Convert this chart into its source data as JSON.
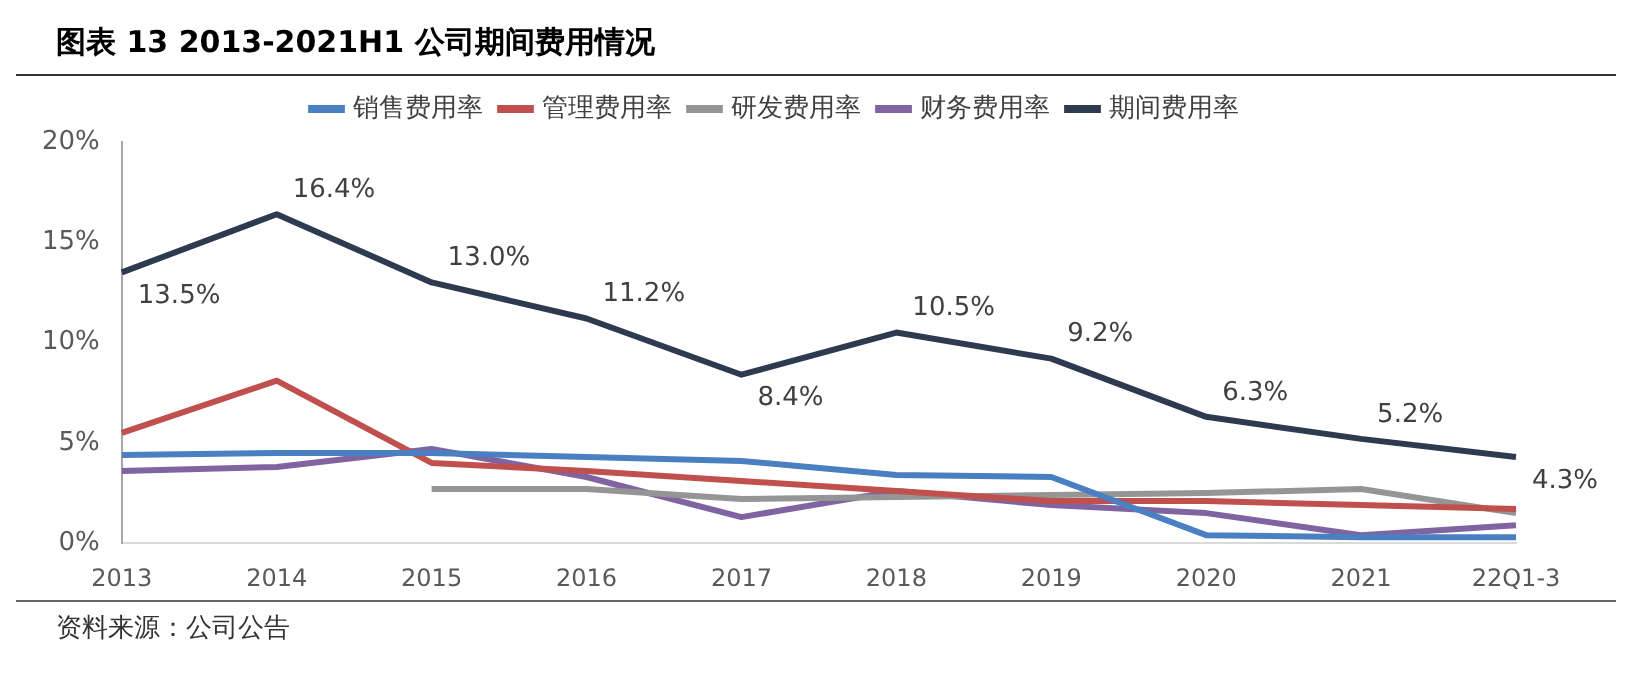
{
  "chart_data": {
    "type": "line",
    "title": "图表 13 2013-2021H1 公司期间费用情况",
    "annotations": [
      "资料来源：公司公告"
    ],
    "categories": [
      "2013",
      "2014",
      "2015",
      "2016",
      "2017",
      "2018",
      "2019",
      "2020",
      "2021",
      "22Q1-3"
    ],
    "series": [
      {
        "name": "销售费用率",
        "color": "#4a7fc1",
        "values": [
          4.4,
          4.5,
          4.5,
          4.3,
          4.1,
          3.4,
          3.3,
          0.4,
          0.3,
          0.3
        ]
      },
      {
        "name": "管理费用率",
        "color": "#c0504d",
        "values": [
          5.5,
          8.1,
          4.0,
          3.6,
          3.1,
          2.6,
          2.1,
          2.1,
          1.9,
          1.7
        ]
      },
      {
        "name": "研发费用率",
        "color": "#959595",
        "values": [
          null,
          null,
          2.7,
          2.7,
          2.2,
          2.3,
          2.4,
          2.5,
          2.7,
          1.5
        ]
      },
      {
        "name": "财务费用率",
        "color": "#8064a2",
        "values": [
          3.6,
          3.8,
          4.7,
          3.3,
          1.3,
          2.6,
          1.9,
          1.5,
          0.4,
          0.9
        ]
      },
      {
        "name": "期间费用率",
        "color": "#2d3a4f",
        "values": [
          13.5,
          16.4,
          13.0,
          11.2,
          8.4,
          10.5,
          9.2,
          6.3,
          5.2,
          4.3
        ],
        "value_labels": [
          "13.5%",
          "16.4%",
          "13.0%",
          "11.2%",
          "8.4%",
          "10.5%",
          "9.2%",
          "6.3%",
          "5.2%",
          "4.3%"
        ]
      }
    ],
    "ylim": [
      0,
      20
    ],
    "yticks": [
      {
        "value": 0,
        "label": "0%"
      },
      {
        "value": 5,
        "label": "5%"
      },
      {
        "value": 10,
        "label": "10%"
      },
      {
        "value": 15,
        "label": "15%"
      },
      {
        "value": 20,
        "label": "20%"
      }
    ],
    "grid": false,
    "legend": "top",
    "marker": "none",
    "line_style": "solid"
  }
}
